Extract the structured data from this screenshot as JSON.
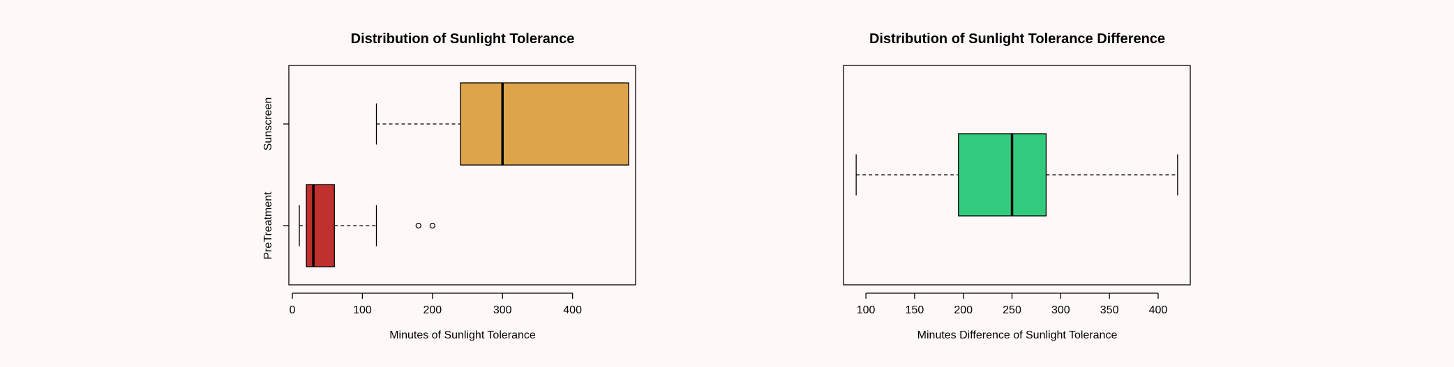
{
  "background": "#fff8f8",
  "chart_data": [
    {
      "type": "boxplot",
      "orientation": "horizontal",
      "title": "Distribution of Sunlight Tolerance",
      "xlabel": "Minutes of Sunlight Tolerance",
      "ylabel": "",
      "xlim": [
        -5,
        490
      ],
      "xticks": [
        0,
        100,
        200,
        300,
        400
      ],
      "grid": false,
      "legend": "none",
      "categories": [
        "PreTreatment",
        "Sunscreen"
      ],
      "boxes": [
        {
          "name": "PreTreatment",
          "color": "#c0302e",
          "whisker_low": 10,
          "q1": 20,
          "median": 30,
          "q3": 60,
          "whisker_high": 120,
          "outliers": [
            180,
            200
          ]
        },
        {
          "name": "Sunscreen",
          "color": "#dda44b",
          "whisker_low": 120,
          "q1": 240,
          "median": 300,
          "q3": 480,
          "whisker_high": 480,
          "outliers": []
        }
      ]
    },
    {
      "type": "boxplot",
      "orientation": "horizontal",
      "title": "Distribution of Sunlight Tolerance Difference",
      "xlabel": "Minutes Difference of Sunlight Tolerance",
      "ylabel": "",
      "xlim": [
        77,
        433
      ],
      "xticks": [
        100,
        150,
        200,
        250,
        300,
        350,
        400
      ],
      "grid": false,
      "legend": "none",
      "categories": [
        ""
      ],
      "boxes": [
        {
          "name": "",
          "color": "#33cc7e",
          "whisker_low": 90,
          "q1": 195,
          "median": 250,
          "q3": 285,
          "whisker_high": 420,
          "outliers": []
        }
      ]
    }
  ]
}
